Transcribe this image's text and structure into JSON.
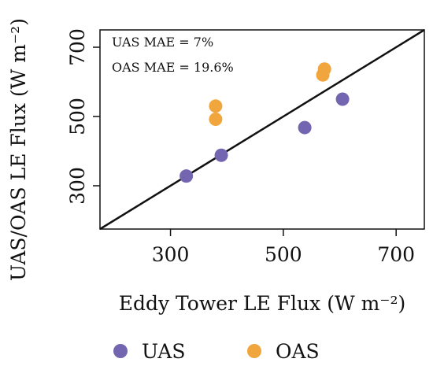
{
  "chart_data": {
    "type": "scatter",
    "xlabel": "Eddy Tower LE Flux (W m⁻²)",
    "ylabel": "UAS/OAS LE Flux (W m⁻²)",
    "xlim": [
      175,
      750
    ],
    "ylim": [
      175,
      750
    ],
    "xticks": [
      300,
      500,
      700
    ],
    "yticks": [
      300,
      500,
      700
    ],
    "grid": false,
    "legend_position": "bottom",
    "one_to_one_line": true,
    "annotations": [
      "UAS MAE = 7%",
      "OAS MAE = 19.6%"
    ],
    "series": [
      {
        "name": "UAS",
        "color": "#7465b0",
        "points": [
          {
            "x": 328,
            "y": 328
          },
          {
            "x": 390,
            "y": 388
          },
          {
            "x": 538,
            "y": 468
          },
          {
            "x": 605,
            "y": 550
          }
        ]
      },
      {
        "name": "OAS",
        "color": "#f0a63c",
        "points": [
          {
            "x": 380,
            "y": 530
          },
          {
            "x": 380,
            "y": 492
          },
          {
            "x": 573,
            "y": 637
          },
          {
            "x": 570,
            "y": 620
          }
        ]
      }
    ]
  }
}
